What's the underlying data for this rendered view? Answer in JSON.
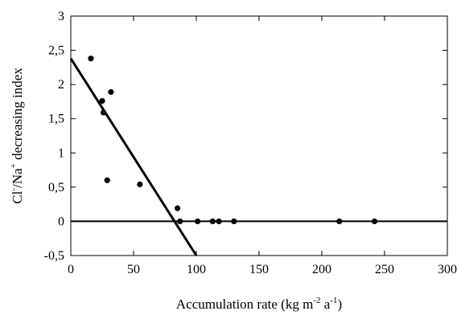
{
  "chart_data": {
    "type": "scatter",
    "xlabel": {
      "prefix": "Accumulation rate (kg m",
      "sup1": "-2",
      "mid": " a",
      "sup2": "-1",
      "suffix": ")"
    },
    "ylabel": {
      "part1": "Cl",
      "sup1": "-",
      "part2": "/Na",
      "sup2": "+",
      "part3": " decreasing index"
    },
    "xlim": [
      0,
      300
    ],
    "ylim": [
      -0.5,
      3
    ],
    "x_ticks": [
      0,
      50,
      100,
      150,
      200,
      250,
      300
    ],
    "x_tick_labels": [
      "0",
      "50",
      "100",
      "150",
      "200",
      "250",
      "300"
    ],
    "y_ticks": [
      -0.5,
      0,
      0.5,
      1,
      1.5,
      2,
      2.5,
      3
    ],
    "y_tick_labels": [
      "-0,5",
      "0",
      "0,5",
      "1",
      "1,5",
      "2",
      "2,5",
      "3"
    ],
    "grid": false,
    "points": [
      {
        "x": 16,
        "y": 2.38
      },
      {
        "x": 25,
        "y": 1.76
      },
      {
        "x": 26,
        "y": 1.59
      },
      {
        "x": 29,
        "y": 0.6
      },
      {
        "x": 32,
        "y": 1.89
      },
      {
        "x": 55,
        "y": 0.54
      },
      {
        "x": 85,
        "y": 0.19
      },
      {
        "x": 87,
        "y": 0
      },
      {
        "x": 101,
        "y": 0
      },
      {
        "x": 113,
        "y": 0
      },
      {
        "x": 118,
        "y": 0
      },
      {
        "x": 130,
        "y": 0
      },
      {
        "x": 214,
        "y": 0
      },
      {
        "x": 242,
        "y": 0
      }
    ],
    "lines": [
      {
        "points": [
          [
            0,
            2.38
          ],
          [
            100,
            -0.5
          ]
        ]
      },
      {
        "points": [
          [
            0,
            0
          ],
          [
            300,
            0
          ]
        ]
      }
    ]
  }
}
